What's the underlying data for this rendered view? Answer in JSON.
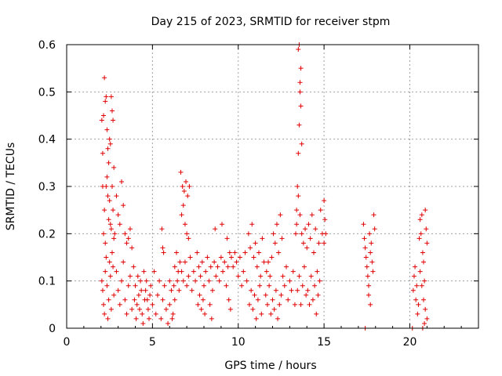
{
  "chart_data": {
    "type": "scatter",
    "title": "Day 215 of 2023, SRMTID for receiver stpm",
    "xlabel": "GPS time / hours",
    "ylabel": "SRMTID / TECUs",
    "xlim": [
      0,
      24
    ],
    "ylim": [
      0,
      0.6
    ],
    "xticks": [
      0,
      5,
      10,
      15,
      20
    ],
    "yticks": [
      0,
      0.1,
      0.2,
      0.3,
      0.4,
      0.5,
      0.6
    ],
    "xtick_labels": [
      "0",
      "5",
      "10",
      "15",
      "20"
    ],
    "ytick_labels": [
      "0",
      "0.1",
      "0.2",
      "0.3",
      "0.4",
      "0.5",
      "0.6"
    ],
    "grid": true,
    "marker": "+",
    "color": "#e00000",
    "series": [
      {
        "name": "SRMTID",
        "points": [
          [
            2.05,
            0.44
          ],
          [
            2.1,
            0.37
          ],
          [
            2.15,
            0.45
          ],
          [
            2.2,
            0.53
          ],
          [
            2.25,
            0.48
          ],
          [
            2.3,
            0.49
          ],
          [
            2.35,
            0.42
          ],
          [
            2.4,
            0.38
          ],
          [
            2.45,
            0.35
          ],
          [
            2.5,
            0.4
          ],
          [
            2.55,
            0.39
          ],
          [
            2.6,
            0.49
          ],
          [
            2.65,
            0.46
          ],
          [
            2.7,
            0.44
          ],
          [
            2.75,
            0.34
          ],
          [
            2.1,
            0.3
          ],
          [
            2.15,
            0.2
          ],
          [
            2.2,
            0.25
          ],
          [
            2.25,
            0.18
          ],
          [
            2.3,
            0.3
          ],
          [
            2.35,
            0.32
          ],
          [
            2.4,
            0.28
          ],
          [
            2.45,
            0.23
          ],
          [
            2.5,
            0.27
          ],
          [
            2.55,
            0.22
          ],
          [
            2.6,
            0.21
          ],
          [
            2.65,
            0.3
          ],
          [
            2.7,
            0.25
          ],
          [
            2.75,
            0.19
          ],
          [
            2.8,
            0.2
          ],
          [
            2.05,
            0.1
          ],
          [
            2.1,
            0.08
          ],
          [
            2.15,
            0.05
          ],
          [
            2.2,
            0.03
          ],
          [
            2.25,
            0.12
          ],
          [
            2.3,
            0.15
          ],
          [
            2.35,
            0.09
          ],
          [
            2.4,
            0.02
          ],
          [
            2.45,
            0.06
          ],
          [
            2.5,
            0.14
          ],
          [
            2.55,
            0.11
          ],
          [
            2.6,
            0.04
          ],
          [
            2.65,
            0.16
          ],
          [
            2.7,
            0.13
          ],
          [
            2.75,
            0.07
          ],
          [
            2.9,
            0.28
          ],
          [
            3.0,
            0.24
          ],
          [
            3.1,
            0.22
          ],
          [
            3.2,
            0.31
          ],
          [
            3.3,
            0.26
          ],
          [
            3.4,
            0.2
          ],
          [
            3.5,
            0.18
          ],
          [
            3.6,
            0.19
          ],
          [
            3.7,
            0.21
          ],
          [
            3.8,
            0.17
          ],
          [
            2.9,
            0.12
          ],
          [
            3.0,
            0.08
          ],
          [
            3.1,
            0.05
          ],
          [
            3.2,
            0.1
          ],
          [
            3.3,
            0.14
          ],
          [
            3.4,
            0.06
          ],
          [
            3.5,
            0.03
          ],
          [
            3.6,
            0.09
          ],
          [
            3.7,
            0.11
          ],
          [
            3.8,
            0.04
          ],
          [
            3.9,
            0.13
          ],
          [
            4.0,
            0.09
          ],
          [
            4.1,
            0.05
          ],
          [
            4.2,
            0.07
          ],
          [
            4.3,
            0.1
          ],
          [
            4.4,
            0.03
          ],
          [
            4.5,
            0.12
          ],
          [
            4.6,
            0.08
          ],
          [
            4.7,
            0.06
          ],
          [
            4.8,
            0.02
          ],
          [
            3.95,
            0.06
          ],
          [
            4.05,
            0.02
          ],
          [
            4.15,
            0.11
          ],
          [
            4.25,
            0.04
          ],
          [
            4.35,
            0.08
          ],
          [
            4.45,
            0.01
          ],
          [
            4.55,
            0.06
          ],
          [
            4.65,
            0.1
          ],
          [
            4.75,
            0.04
          ],
          [
            4.85,
            0.07
          ],
          [
            4.9,
            0.09
          ],
          [
            5.0,
            0.05
          ],
          [
            5.1,
            0.12
          ],
          [
            5.2,
            0.03
          ],
          [
            5.3,
            0.07
          ],
          [
            5.4,
            0.1
          ],
          [
            5.5,
            0.02
          ],
          [
            5.6,
            0.06
          ],
          [
            5.7,
            0.09
          ],
          [
            5.8,
            0.04
          ],
          [
            5.55,
            0.21
          ],
          [
            5.6,
            0.17
          ],
          [
            5.65,
            0.16
          ],
          [
            5.9,
            0.01
          ],
          [
            6.0,
            0.05
          ],
          [
            6.1,
            0.08
          ],
          [
            6.2,
            0.03
          ],
          [
            6.3,
            0.06
          ],
          [
            6.0,
            0.1
          ],
          [
            6.15,
            0.02
          ],
          [
            6.25,
            0.09
          ],
          [
            6.3,
            0.13
          ],
          [
            6.4,
            0.16
          ],
          [
            6.5,
            0.12
          ],
          [
            6.6,
            0.14
          ],
          [
            6.45,
            0.1
          ],
          [
            6.55,
            0.08
          ],
          [
            6.65,
            0.33
          ],
          [
            6.75,
            0.3
          ],
          [
            6.85,
            0.29
          ],
          [
            6.95,
            0.31
          ],
          [
            7.05,
            0.28
          ],
          [
            7.15,
            0.3
          ],
          [
            6.7,
            0.24
          ],
          [
            6.8,
            0.26
          ],
          [
            6.9,
            0.22
          ],
          [
            7.0,
            0.2
          ],
          [
            7.1,
            0.19
          ],
          [
            6.7,
            0.12
          ],
          [
            6.8,
            0.1
          ],
          [
            6.9,
            0.14
          ],
          [
            7.0,
            0.09
          ],
          [
            7.1,
            0.11
          ],
          [
            7.2,
            0.15
          ],
          [
            7.3,
            0.08
          ],
          [
            7.4,
            0.12
          ],
          [
            7.5,
            0.1
          ],
          [
            7.6,
            0.16
          ],
          [
            7.7,
            0.13
          ],
          [
            7.8,
            0.11
          ],
          [
            7.9,
            0.14
          ],
          [
            8.0,
            0.09
          ],
          [
            8.1,
            0.12
          ],
          [
            8.2,
            0.15
          ],
          [
            8.3,
            0.1
          ],
          [
            8.4,
            0.13
          ],
          [
            8.5,
            0.08
          ],
          [
            7.65,
            0.05
          ],
          [
            7.75,
            0.07
          ],
          [
            7.85,
            0.04
          ],
          [
            7.95,
            0.06
          ],
          [
            8.05,
            0.03
          ],
          [
            8.35,
            0.05
          ],
          [
            8.45,
            0.02
          ],
          [
            8.6,
            0.14
          ],
          [
            8.7,
            0.11
          ],
          [
            8.8,
            0.13
          ],
          [
            8.9,
            0.1
          ],
          [
            9.0,
            0.15
          ],
          [
            9.1,
            0.12
          ],
          [
            9.2,
            0.14
          ],
          [
            9.3,
            0.09
          ],
          [
            9.4,
            0.13
          ],
          [
            9.5,
            0.16
          ],
          [
            8.65,
            0.21
          ],
          [
            9.05,
            0.22
          ],
          [
            9.35,
            0.19
          ],
          [
            9.45,
            0.06
          ],
          [
            9.55,
            0.04
          ],
          [
            9.6,
            0.15
          ],
          [
            9.7,
            0.13
          ],
          [
            9.8,
            0.16
          ],
          [
            9.9,
            0.14
          ],
          [
            10.0,
            0.11
          ],
          [
            10.1,
            0.15
          ],
          [
            10.2,
            0.09
          ],
          [
            10.3,
            0.12
          ],
          [
            10.4,
            0.16
          ],
          [
            10.5,
            0.1
          ],
          [
            10.6,
            0.2
          ],
          [
            10.7,
            0.17
          ],
          [
            10.8,
            0.22
          ],
          [
            10.9,
            0.15
          ],
          [
            11.0,
            0.18
          ],
          [
            11.1,
            0.13
          ],
          [
            11.2,
            0.16
          ],
          [
            11.3,
            0.11
          ],
          [
            11.4,
            0.19
          ],
          [
            11.5,
            0.14
          ],
          [
            10.65,
            0.05
          ],
          [
            10.75,
            0.08
          ],
          [
            10.85,
            0.04
          ],
          [
            10.95,
            0.07
          ],
          [
            11.05,
            0.02
          ],
          [
            11.15,
            0.06
          ],
          [
            11.25,
            0.09
          ],
          [
            11.35,
            0.03
          ],
          [
            11.6,
            0.07
          ],
          [
            11.7,
            0.05
          ],
          [
            11.8,
            0.09
          ],
          [
            11.9,
            0.03
          ],
          [
            12.0,
            0.06
          ],
          [
            12.1,
            0.04
          ],
          [
            12.2,
            0.08
          ],
          [
            12.3,
            0.02
          ],
          [
            12.4,
            0.05
          ],
          [
            12.5,
            0.07
          ],
          [
            11.65,
            0.12
          ],
          [
            11.75,
            0.14
          ],
          [
            11.85,
            0.11
          ],
          [
            11.95,
            0.15
          ],
          [
            12.05,
            0.2
          ],
          [
            12.15,
            0.18
          ],
          [
            12.25,
            0.22
          ],
          [
            12.35,
            0.16
          ],
          [
            12.45,
            0.24
          ],
          [
            12.55,
            0.19
          ],
          [
            12.6,
            0.11
          ],
          [
            12.7,
            0.09
          ],
          [
            12.8,
            0.13
          ],
          [
            12.9,
            0.06
          ],
          [
            13.0,
            0.1
          ],
          [
            13.1,
            0.08
          ],
          [
            13.2,
            0.12
          ],
          [
            13.3,
            0.05
          ],
          [
            13.35,
            0.2
          ],
          [
            13.4,
            0.25
          ],
          [
            13.45,
            0.3
          ],
          [
            13.5,
            0.37
          ],
          [
            13.55,
            0.43
          ],
          [
            13.6,
            0.5
          ],
          [
            13.65,
            0.55
          ],
          [
            13.5,
            0.59
          ],
          [
            13.55,
            0.6
          ],
          [
            13.6,
            0.52
          ],
          [
            13.65,
            0.47
          ],
          [
            13.7,
            0.39
          ],
          [
            13.4,
            0.22
          ],
          [
            13.5,
            0.28
          ],
          [
            13.6,
            0.24
          ],
          [
            13.7,
            0.2
          ],
          [
            13.8,
            0.18
          ],
          [
            13.9,
            0.21
          ],
          [
            13.45,
            0.08
          ],
          [
            13.55,
            0.11
          ],
          [
            13.65,
            0.05
          ],
          [
            13.75,
            0.09
          ],
          [
            13.85,
            0.13
          ],
          [
            13.95,
            0.07
          ],
          [
            14.0,
            0.17
          ],
          [
            14.1,
            0.22
          ],
          [
            14.2,
            0.19
          ],
          [
            14.3,
            0.24
          ],
          [
            14.4,
            0.16
          ],
          [
            14.5,
            0.21
          ],
          [
            14.6,
            0.12
          ],
          [
            14.7,
            0.18
          ],
          [
            14.8,
            0.25
          ],
          [
            14.9,
            0.2
          ],
          [
            14.05,
            0.08
          ],
          [
            14.15,
            0.05
          ],
          [
            14.25,
            0.11
          ],
          [
            14.35,
            0.06
          ],
          [
            14.45,
            0.09
          ],
          [
            14.55,
            0.03
          ],
          [
            14.65,
            0.07
          ],
          [
            14.75,
            0.1
          ],
          [
            15.0,
            0.27
          ],
          [
            15.05,
            0.23
          ],
          [
            15.1,
            0.2
          ],
          [
            15.0,
            0.18
          ],
          [
            17.3,
            0.22
          ],
          [
            17.35,
            0.19
          ],
          [
            17.4,
            0.17
          ],
          [
            17.45,
            0.15
          ],
          [
            17.5,
            0.13
          ],
          [
            17.55,
            0.11
          ],
          [
            17.6,
            0.09
          ],
          [
            17.65,
            0.2
          ],
          [
            17.7,
            0.16
          ],
          [
            17.75,
            0.18
          ],
          [
            17.8,
            0.14
          ],
          [
            17.85,
            0.12
          ],
          [
            17.9,
            0.24
          ],
          [
            17.95,
            0.21
          ],
          [
            17.6,
            0.07
          ],
          [
            17.7,
            0.05
          ],
          [
            17.4,
            0.0
          ],
          [
            20.15,
            0.0
          ],
          [
            20.2,
            0.08
          ],
          [
            20.25,
            0.11
          ],
          [
            20.3,
            0.13
          ],
          [
            20.35,
            0.06
          ],
          [
            20.4,
            0.09
          ],
          [
            20.45,
            0.03
          ],
          [
            20.5,
            0.05
          ],
          [
            20.55,
            0.19
          ],
          [
            20.6,
            0.23
          ],
          [
            20.65,
            0.2
          ],
          [
            20.7,
            0.24
          ],
          [
            20.75,
            0.16
          ],
          [
            20.8,
            0.14
          ],
          [
            20.85,
            0.1
          ],
          [
            20.9,
            0.25
          ],
          [
            20.95,
            0.21
          ],
          [
            21.0,
            0.18
          ],
          [
            20.6,
            0.12
          ],
          [
            20.7,
            0.09
          ],
          [
            20.8,
            0.06
          ],
          [
            20.9,
            0.04
          ],
          [
            21.0,
            0.02
          ],
          [
            20.75,
            0.0
          ],
          [
            20.85,
            0.01
          ]
        ]
      }
    ]
  }
}
